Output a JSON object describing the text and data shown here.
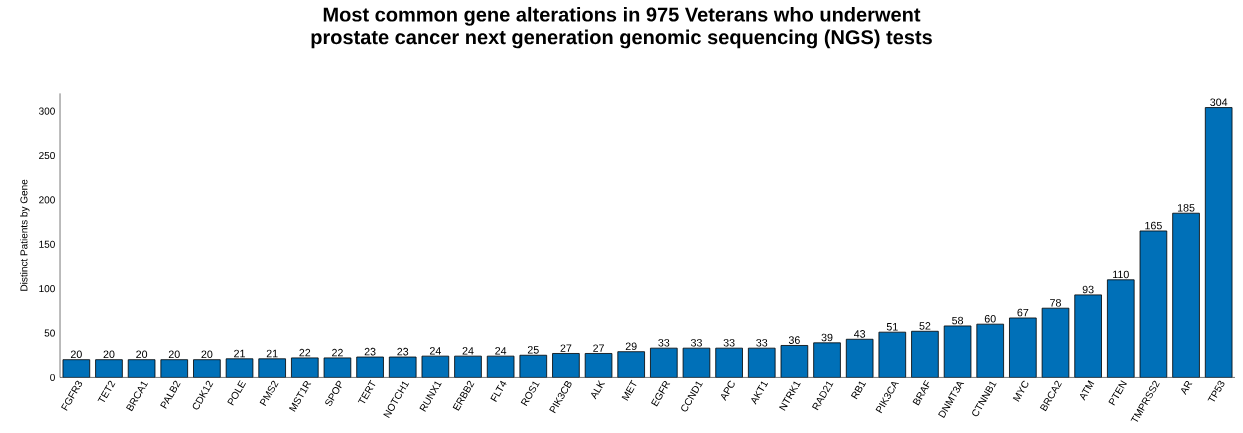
{
  "chart_data": {
    "type": "bar",
    "title": "Most common gene alterations in 975 Veterans who underwent\nprostate cancer next generation genomic sequencing (NGS) tests",
    "ylabel": "Distinct Patients by Gene",
    "categories": [
      "FGFR3",
      "TET2",
      "BRCA1",
      "PALB2",
      "CDK12",
      "POLE",
      "PMS2",
      "MST1R",
      "SPOP",
      "TERT",
      "NOTCH1",
      "RUNX1",
      "ERBB2",
      "FLT4",
      "ROS1",
      "PIK3CB",
      "ALK",
      "MET",
      "EGFR",
      "CCND1",
      "APC",
      "AKT1",
      "NTRK1",
      "RAD21",
      "RB1",
      "PIK3CA",
      "BRAF",
      "DNMT3A",
      "CTNNB1",
      "MYC",
      "BRCA2",
      "ATM",
      "PTEN",
      "TMPRSS2",
      "AR",
      "TP53"
    ],
    "values": [
      20,
      20,
      20,
      20,
      20,
      21,
      21,
      22,
      22,
      23,
      23,
      24,
      24,
      24,
      25,
      27,
      27,
      29,
      33,
      33,
      33,
      33,
      36,
      39,
      43,
      51,
      52,
      58,
      60,
      67,
      78,
      93,
      110,
      165,
      185,
      304
    ],
    "color": "#0070b8",
    "ylim": [
      0,
      320
    ],
    "yticks": [
      0,
      50,
      100,
      150,
      200,
      250,
      300
    ],
    "data_labels": true,
    "grid": false
  }
}
